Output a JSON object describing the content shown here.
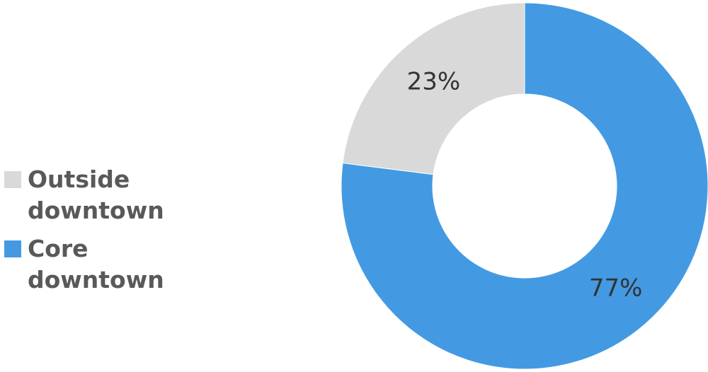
{
  "chart_data": {
    "type": "donut",
    "categories": [
      "Outside downtown",
      "Core downtown"
    ],
    "values": [
      23,
      77
    ],
    "value_labels": [
      "23%",
      "77%"
    ],
    "colors": [
      "#d9d9d9",
      "#439ae3"
    ],
    "legend": "left"
  }
}
